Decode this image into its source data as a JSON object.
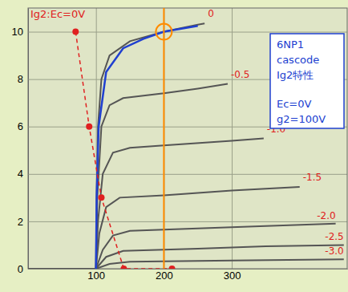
{
  "chart_data": {
    "type": "line",
    "title": "Ig2:Ec=0V",
    "xlim": [
      0,
      470
    ],
    "ylim": [
      0,
      11
    ],
    "xticks": [
      100,
      200,
      300
    ],
    "yticks": [
      0,
      2,
      4,
      6,
      8,
      10
    ],
    "grid": true,
    "text_box": [
      "6NP1",
      "cascode",
      "Ig2特性",
      "Ec=0V",
      "g2=100V"
    ],
    "series": [
      {
        "name": "0",
        "color": "#555555",
        "line_style": "solid",
        "x": [
          0,
          100,
          101,
          103,
          108,
          120,
          150,
          200,
          250,
          260
        ],
        "values": [
          0,
          0,
          3,
          6,
          8,
          9,
          9.6,
          10,
          10.3,
          10.35
        ]
      },
      {
        "name": "-0.5",
        "color": "#555555",
        "line_style": "solid",
        "x": [
          0,
          100,
          102,
          108,
          120,
          140,
          200,
          250,
          294
        ],
        "values": [
          0,
          0,
          3,
          6,
          6.9,
          7.2,
          7.4,
          7.6,
          7.8
        ]
      },
      {
        "name": "-1.0",
        "color": "#555555",
        "line_style": "solid",
        "x": [
          0,
          100,
          103,
          110,
          125,
          150,
          200,
          300,
          347
        ],
        "values": [
          0,
          0,
          2,
          4,
          4.9,
          5.1,
          5.2,
          5.4,
          5.5
        ]
      },
      {
        "name": "-1.5",
        "color": "#555555",
        "line_style": "solid",
        "x": [
          0,
          100,
          105,
          115,
          135,
          200,
          300,
          400
        ],
        "values": [
          0,
          0,
          1.5,
          2.6,
          3.0,
          3.1,
          3.3,
          3.45
        ]
      },
      {
        "name": "-2.0",
        "color": "#555555",
        "line_style": "solid",
        "x": [
          0,
          100,
          110,
          125,
          150,
          250,
          350,
          453
        ],
        "values": [
          0,
          0,
          0.8,
          1.4,
          1.6,
          1.7,
          1.8,
          1.9
        ]
      },
      {
        "name": "-2.5",
        "color": "#555555",
        "line_style": "solid",
        "x": [
          0,
          100,
          115,
          140,
          250,
          350,
          465
        ],
        "values": [
          0,
          0,
          0.5,
          0.75,
          0.85,
          0.95,
          1.0
        ]
      },
      {
        "name": "-3.0",
        "color": "#555555",
        "line_style": "solid",
        "x": [
          0,
          100,
          120,
          150,
          300,
          465
        ],
        "values": [
          0,
          0,
          0.2,
          0.3,
          0.35,
          0.4
        ]
      },
      {
        "color": "#2040d0",
        "line_style": "solid",
        "x": [
          100,
          101,
          104,
          115,
          140,
          170,
          200,
          250
        ],
        "values": [
          0,
          3,
          6,
          8.3,
          9.3,
          9.7,
          10,
          10.25
        ]
      },
      {
        "color": "#e02020",
        "line_style": "dashed",
        "marker": "circle",
        "x": [
          70,
          90,
          108,
          141,
          212
        ],
        "values": [
          10,
          6,
          3,
          0,
          0
        ]
      }
    ],
    "annotations": [
      {
        "type": "vline",
        "x": 200,
        "color": "#ff8c00"
      },
      {
        "type": "circle",
        "x": 200,
        "y": 10,
        "color": "#ff8c00"
      }
    ]
  }
}
